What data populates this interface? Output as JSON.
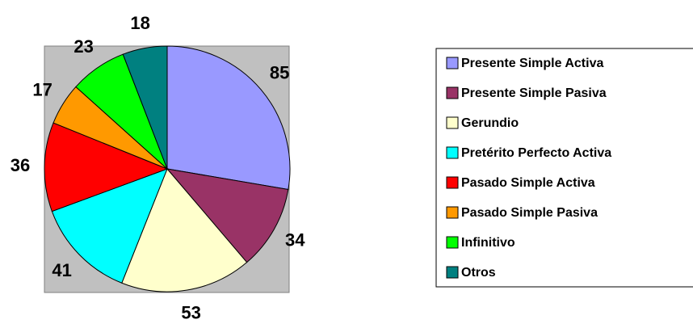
{
  "chart_data": {
    "type": "pie",
    "categories": [
      "Presente Simple Activa",
      "Presente Simple Pasiva",
      "Gerundio",
      "Pretérito Perfecto Activa",
      "Pasado Simple Activa",
      "Pasado Simple Pasiva",
      "Infinitivo",
      "Otros"
    ],
    "values": [
      85,
      34,
      53,
      41,
      36,
      17,
      23,
      18
    ],
    "colors": [
      "#9999ff",
      "#993366",
      "#ffffcc",
      "#00ffff",
      "#ff0000",
      "#ff9900",
      "#00ff00",
      "#008080"
    ],
    "legend": "right"
  }
}
